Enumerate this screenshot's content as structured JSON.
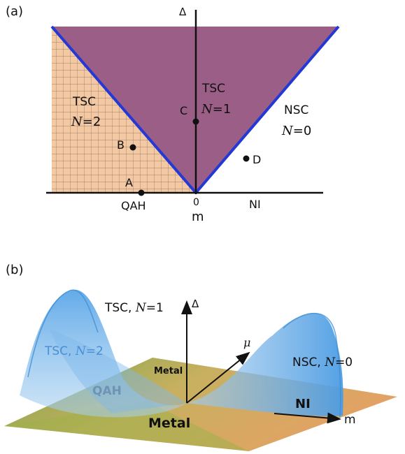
{
  "panel_a": {
    "tag": "(a)",
    "axis_y_label": "Δ",
    "axis_x_origin": "0",
    "axis_x_label": "m",
    "region_tsc1": {
      "name": "TSC",
      "sym": "N",
      "eq": "=1"
    },
    "region_tsc2": {
      "name": "TSC",
      "sym": "N",
      "eq": "=2"
    },
    "region_nsc": {
      "name": "NSC",
      "sym": "N",
      "eq": "=0"
    },
    "label_qah": "QAH",
    "label_ni": "NI",
    "points": {
      "a": "A",
      "b": "B",
      "c": "C",
      "d": "D"
    },
    "colors": {
      "purple": "#9b5e86",
      "grid_fill": "#f3c9a3",
      "grid_line": "#8a6a55",
      "boundary": "#2438d6"
    }
  },
  "panel_b": {
    "tag": "(b)",
    "tsc1": {
      "text": "TSC, ",
      "sym": "N",
      "eq": "=1"
    },
    "tsc2": {
      "text": "TSC, ",
      "sym": "N",
      "eq": "=2"
    },
    "nsc": {
      "text": "NSC, ",
      "sym": "N",
      "eq": "=0"
    },
    "axis_delta": "Δ",
    "axis_mu": "μ",
    "axis_m": "m",
    "label_metal_top": "Metal",
    "label_metal_bottom": "Metal",
    "label_qah": "QAH",
    "label_ni": "NI",
    "colors": {
      "green": "#8aaa3e",
      "orange": "#e0a86a",
      "blue": "#6aaee8"
    }
  }
}
